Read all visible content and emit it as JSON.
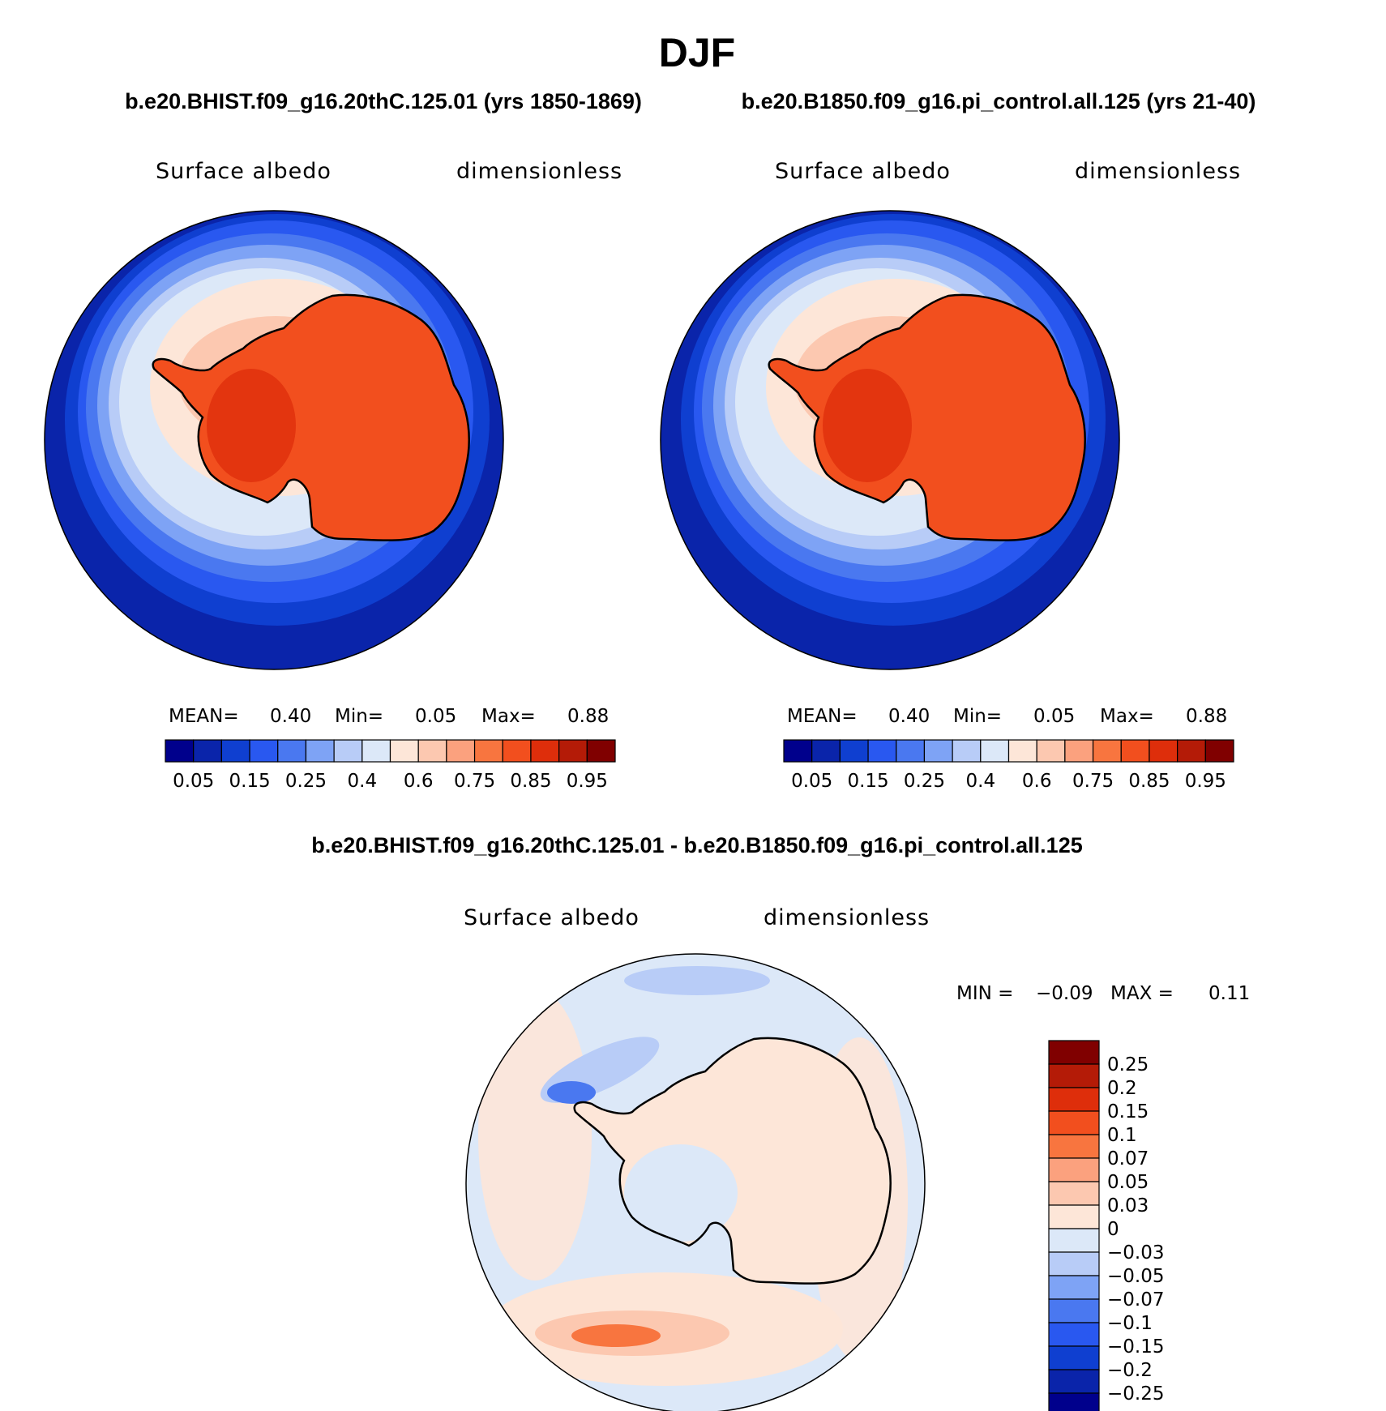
{
  "title": "DJF",
  "subtitle_left": "b.e20.BHIST.f09_g16.20thC.125.01 (yrs 1850-1869)",
  "subtitle_right": "b.e20.B1850.f09_g16.pi_control.all.125 (yrs 21-40)",
  "diff_title": "b.e20.BHIST.f09_g16.20thC.125.01 - b.e20.B1850.f09_g16.pi_control.all.125",
  "panels": [
    {
      "variable": "Surface albedo",
      "units": "dimensionless",
      "stats": {
        "mean_label": "MEAN=",
        "mean": "0.40",
        "min_label": "Min=",
        "min": "0.05",
        "max_label": "Max=",
        "max": "0.88"
      }
    },
    {
      "variable": "Surface albedo",
      "units": "dimensionless",
      "stats": {
        "mean_label": "MEAN=",
        "mean": "0.40",
        "min_label": "Min=",
        "min": "0.05",
        "max_label": "Max=",
        "max": "0.88"
      }
    }
  ],
  "diff_panel": {
    "variable": "Surface albedo",
    "units": "dimensionless",
    "stats": {
      "min_label": "MIN =",
      "min": "−0.09",
      "max_label": "MAX =",
      "max": "0.11"
    }
  },
  "colorbar_abs": {
    "colors": [
      "#00008c",
      "#0a24aa",
      "#0f3fd0",
      "#2958f0",
      "#4a78f0",
      "#7ea3f5",
      "#b8ccf7",
      "#dce8f8",
      "#fde6d8",
      "#fcc8b0",
      "#fba17e",
      "#f8753f",
      "#f24f1e",
      "#de2e0b",
      "#b41b07",
      "#800000"
    ],
    "labels": [
      "0.05",
      "0.15",
      "0.25",
      "0.4",
      "0.6",
      "0.75",
      "0.85",
      "0.95"
    ]
  },
  "colorbar_diff": {
    "colors": [
      "#00008c",
      "#0a24aa",
      "#0f3fd0",
      "#2958f0",
      "#4a78f0",
      "#7ea3f5",
      "#b8ccf7",
      "#dce8f8",
      "#fde6d8",
      "#fcc8b0",
      "#fba17e",
      "#f8753f",
      "#f24f1e",
      "#de2e0b",
      "#b41b07",
      "#800000"
    ],
    "labels": [
      "0.25",
      "0.2",
      "0.15",
      "0.1",
      "0.07",
      "0.05",
      "0.03",
      "0",
      "−0.03",
      "−0.05",
      "−0.07",
      "−0.1",
      "−0.15",
      "−0.2",
      "−0.25"
    ]
  }
}
